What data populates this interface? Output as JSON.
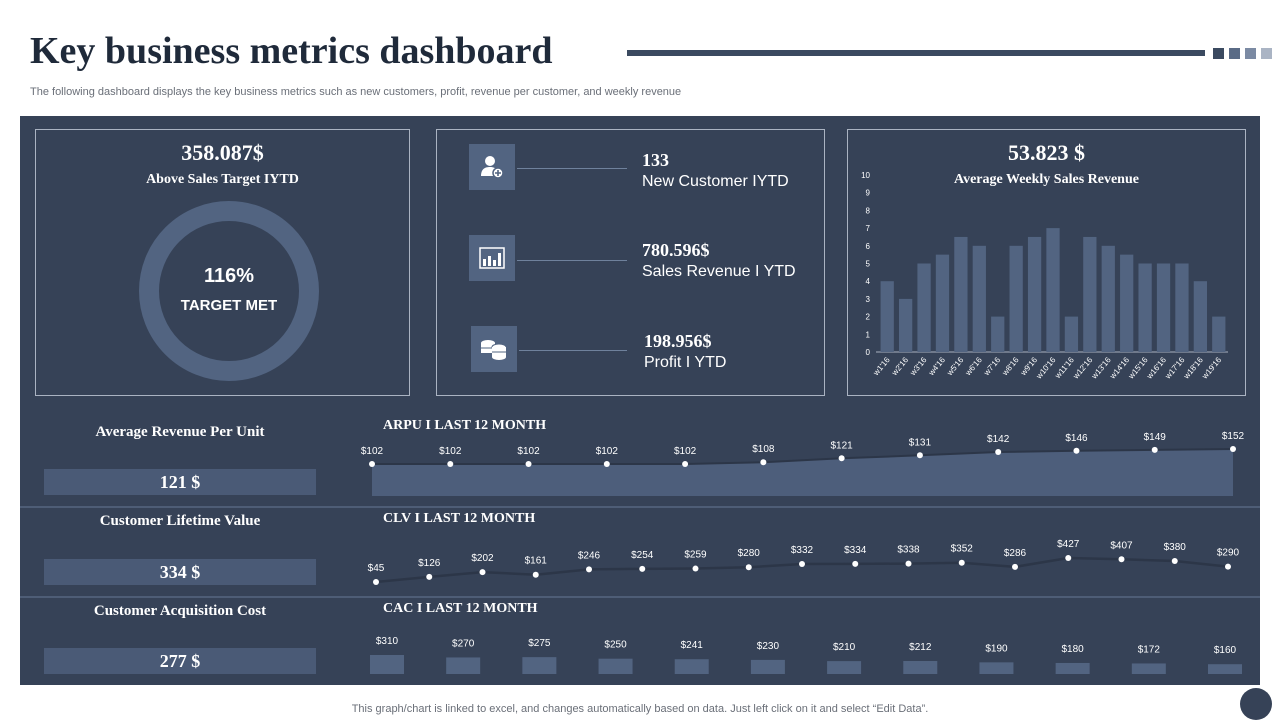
{
  "header": {
    "title": "Key business metrics dashboard",
    "subtitle": "The following dashboard displays the key business metrics such as new customers, profit, revenue per customer, and weekly revenue"
  },
  "colors": {
    "panel": "#364257",
    "accent": "#526481",
    "title_bar": "#3b4a60",
    "squares": [
      "#3b4a60",
      "#5a6b86",
      "#7b8aa3",
      "#aab4c4"
    ]
  },
  "sales_target": {
    "value": "358.087$",
    "label": "Above Sales Target IYTD",
    "percent": "116%",
    "status": "TARGET MET"
  },
  "kpis": [
    {
      "icon": "add-user-icon",
      "value": "133",
      "label": "New Customer IYTD"
    },
    {
      "icon": "bar-chart-icon",
      "value": "780.596$",
      "label": "Sales Revenue I YTD"
    },
    {
      "icon": "coins-icon",
      "value": "198.956$",
      "label": "Profit I YTD"
    }
  ],
  "weekly": {
    "value": "53.823 $",
    "label": "Average Weekly Sales Revenue"
  },
  "metrics": [
    {
      "label": "Average Revenue Per Unit",
      "value": "121 $"
    },
    {
      "label": "Customer Lifetime Value",
      "value": "334 $"
    },
    {
      "label": "Customer Acquisition Cost",
      "value": "277 $"
    }
  ],
  "rows": {
    "arpu": "ARPU I LAST 12 MONTH",
    "clv": "CLV I LAST 12 MONTH",
    "cac": "CAC I LAST 12 MONTH"
  },
  "footer": "This graph/chart is linked to excel,  and changes automatically based on data. Just left click on it and select “Edit Data”.",
  "chart_data": [
    {
      "type": "bar",
      "categories": [
        "w1'16",
        "w2'16",
        "w3'16",
        "w4'16",
        "w5'16",
        "w6'16",
        "w7'16",
        "w8'16",
        "w9'16",
        "w10'16",
        "w11'16",
        "w12'16",
        "w13'16",
        "w14'16",
        "w15'16",
        "w16'16",
        "w17'16",
        "w18'16",
        "w19'16"
      ],
      "values": [
        4,
        3,
        5,
        5.5,
        6.5,
        6,
        2,
        6,
        6.5,
        7,
        2,
        6.5,
        6,
        5.5,
        5,
        5,
        5,
        4,
        2
      ],
      "ylim": [
        0,
        10
      ],
      "yticks": [
        0,
        1,
        2,
        3,
        4,
        5,
        6,
        7,
        8,
        9,
        10
      ],
      "title": "Average Weekly Sales Revenue"
    },
    {
      "type": "area",
      "title": "ARPU I LAST 12 MONTH",
      "labels": [
        "$102",
        "$102",
        "$102",
        "$102",
        "$102",
        "$108",
        "$121",
        "$131",
        "$142",
        "$146",
        "$149",
        "$152"
      ],
      "values": [
        102,
        102,
        102,
        102,
        102,
        108,
        121,
        131,
        142,
        146,
        149,
        152
      ]
    },
    {
      "type": "line",
      "title": "CLV I LAST 12 MONTH",
      "labels": [
        "$45",
        "$126",
        "$202",
        "$161",
        "$246",
        "$254",
        "$259",
        "$280",
        "$332",
        "$334",
        "$338",
        "$352",
        "$286",
        "$427",
        "$407",
        "$380",
        "$290"
      ],
      "values": [
        45,
        126,
        202,
        161,
        246,
        254,
        259,
        280,
        332,
        334,
        338,
        352,
        286,
        427,
        407,
        380,
        290
      ]
    },
    {
      "type": "bar",
      "title": "CAC I LAST 12 MONTH",
      "labels": [
        "$310",
        "$270",
        "$275",
        "$250",
        "$241",
        "$230",
        "$210",
        "$212",
        "$190",
        "$180",
        "$172",
        "$160"
      ],
      "values": [
        310,
        270,
        275,
        250,
        241,
        230,
        210,
        212,
        190,
        180,
        172,
        160
      ]
    }
  ]
}
